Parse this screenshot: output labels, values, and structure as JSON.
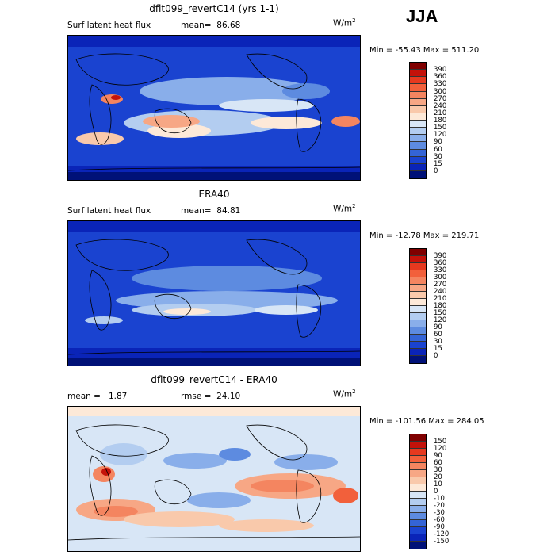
{
  "season": "JJA",
  "units": {
    "base": "W/m",
    "exp": "2"
  },
  "panels": [
    {
      "id": "model",
      "title": "dflt099_revertC14 (yrs 1-1)",
      "left_label": "Surf latent heat flux",
      "stat_label": "mean=",
      "stat_value": "86.68",
      "minmax": "Min = -55.43 Max = 511.20",
      "colorbar": {
        "labels": [
          "390",
          "360",
          "330",
          "300",
          "270",
          "240",
          "210",
          "180",
          "150",
          "120",
          "90",
          "60",
          "30",
          "15",
          "0"
        ],
        "colors": [
          "#800000",
          "#c4120a",
          "#e6391f",
          "#f2603b",
          "#f48560",
          "#f7a785",
          "#f9c9ab",
          "#fde9d8",
          "#d8e6f6",
          "#b3cdf0",
          "#89aeea",
          "#5d8be0",
          "#3464d6",
          "#1a43d0",
          "#0a24b8",
          "#001178"
        ]
      },
      "style": "model"
    },
    {
      "id": "obs",
      "title": "ERA40",
      "left_label": "Surf latent heat flux",
      "stat_label": "mean=",
      "stat_value": "84.81",
      "minmax": "Min = -12.78 Max = 219.71",
      "colorbar": {
        "labels": [
          "390",
          "360",
          "330",
          "300",
          "270",
          "240",
          "210",
          "180",
          "150",
          "120",
          "90",
          "60",
          "30",
          "15",
          "0"
        ],
        "colors": [
          "#800000",
          "#c4120a",
          "#e6391f",
          "#f2603b",
          "#f48560",
          "#f7a785",
          "#f9c9ab",
          "#fde9d8",
          "#d8e6f6",
          "#b3cdf0",
          "#89aeea",
          "#5d8be0",
          "#3464d6",
          "#1a43d0",
          "#0a24b8",
          "#001178"
        ]
      },
      "style": "obs"
    },
    {
      "id": "diff",
      "title": "dflt099_revertC14 - ERA40",
      "left_label": "mean =",
      "left_value": "1.87",
      "stat_label": "rmse =",
      "stat_value": "24.10",
      "minmax": "Min = -101.56 Max = 284.05",
      "colorbar": {
        "labels": [
          "150",
          "120",
          "90",
          "60",
          "30",
          "20",
          "10",
          "0",
          "-10",
          "-20",
          "-30",
          "-60",
          "-90",
          "-120",
          "-150"
        ],
        "colors": [
          "#800000",
          "#c4120a",
          "#e6391f",
          "#f2603b",
          "#f48560",
          "#f7a785",
          "#f9c9ab",
          "#fde9d8",
          "#d8e6f6",
          "#b3cdf0",
          "#89aeea",
          "#5d8be0",
          "#3464d6",
          "#1a43d0",
          "#0a24b8",
          "#001178"
        ]
      },
      "style": "diff"
    }
  ]
}
